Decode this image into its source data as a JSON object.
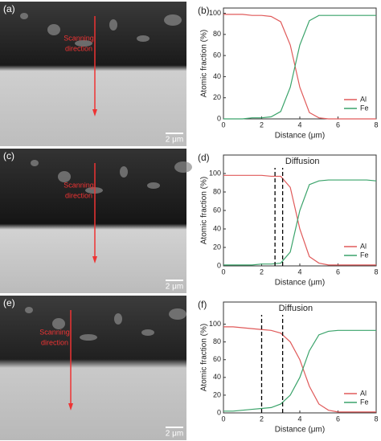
{
  "chart_data": [
    {
      "type": "line",
      "panel": "(b)",
      "xlabel": "Distance (μm)",
      "ylabel": "Atomic fraction (%)",
      "x": [
        0,
        0.5,
        1,
        1.5,
        2,
        2.5,
        3,
        3.5,
        4,
        4.5,
        5,
        5.5,
        6,
        6.5,
        7,
        7.5,
        8
      ],
      "series": [
        {
          "name": "Al",
          "color": "#e05a5a",
          "values": [
            99,
            99,
            99,
            98,
            98,
            97,
            92,
            70,
            30,
            6,
            1,
            0,
            0,
            0,
            0,
            0,
            0
          ]
        },
        {
          "name": "Fe",
          "color": "#3aa36a",
          "values": [
            0,
            0,
            0,
            1,
            1,
            2,
            7,
            30,
            70,
            93,
            98,
            98,
            98,
            98,
            98,
            98,
            98
          ]
        }
      ],
      "xlim": [
        0,
        8
      ],
      "xticks": [
        0,
        2,
        4,
        6,
        8
      ],
      "ylim": [
        0,
        105
      ],
      "yticks": [
        0,
        20,
        40,
        60,
        80,
        100
      ],
      "legend": "lower right"
    },
    {
      "type": "line",
      "panel": "(d)",
      "xlabel": "Distance (μm)",
      "ylabel": "Atomic fraction (%)",
      "annotation": "Diffusion",
      "markers_x": [
        2.7,
        3.1
      ],
      "x": [
        0,
        0.5,
        1,
        1.5,
        2,
        2.5,
        3,
        3.5,
        4,
        4.5,
        5,
        5.5,
        6,
        6.5,
        7,
        7.5,
        8
      ],
      "series": [
        {
          "name": "Al",
          "color": "#e05a5a",
          "values": [
            98,
            98,
            98,
            98,
            98,
            97,
            97,
            85,
            40,
            10,
            3,
            1,
            1,
            1,
            1,
            1,
            1
          ]
        },
        {
          "name": "Fe",
          "color": "#3aa36a",
          "values": [
            1,
            1,
            1,
            1,
            2,
            2,
            3,
            15,
            60,
            88,
            92,
            93,
            93,
            93,
            93,
            93,
            92
          ]
        }
      ],
      "xlim": [
        0,
        8
      ],
      "xticks": [
        0,
        2,
        4,
        6,
        8
      ],
      "ylim": [
        0,
        120
      ],
      "yticks": [
        0,
        20,
        40,
        60,
        80,
        100
      ],
      "legend": "lower right"
    },
    {
      "type": "line",
      "panel": "(f)",
      "xlabel": "Distance (μm)",
      "ylabel": "Atomic fraction (%)",
      "annotation": "Diffusion",
      "markers_x": [
        2.0,
        3.1
      ],
      "x": [
        0,
        0.5,
        1,
        1.5,
        2,
        2.5,
        3,
        3.5,
        4,
        4.5,
        5,
        5.5,
        6,
        6.5,
        7,
        7.5,
        8
      ],
      "series": [
        {
          "name": "Al",
          "color": "#e05a5a",
          "values": [
            97,
            97,
            96,
            95,
            94,
            93,
            90,
            80,
            60,
            30,
            10,
            3,
            1,
            1,
            1,
            1,
            1
          ]
        },
        {
          "name": "Fe",
          "color": "#3aa36a",
          "values": [
            2,
            2,
            3,
            4,
            5,
            6,
            10,
            20,
            40,
            70,
            88,
            92,
            93,
            93,
            93,
            93,
            93
          ]
        }
      ],
      "xlim": [
        0,
        8
      ],
      "xticks": [
        0,
        2,
        4,
        6,
        8
      ],
      "ylim": [
        0,
        125
      ],
      "yticks": [
        0,
        20,
        40,
        60,
        80,
        100
      ],
      "legend": "lower right"
    }
  ],
  "images": [
    {
      "label": "(a)",
      "annotation_lines": [
        "Scanning",
        "direction"
      ],
      "scale": "2 μm"
    },
    {
      "label": "(c)",
      "annotation_lines": [
        "Scanning",
        "direction"
      ],
      "scale": "2 μm"
    },
    {
      "label": "(e)",
      "annotation_lines": [
        "Scanning",
        "direction"
      ],
      "scale": "2 μm"
    }
  ]
}
